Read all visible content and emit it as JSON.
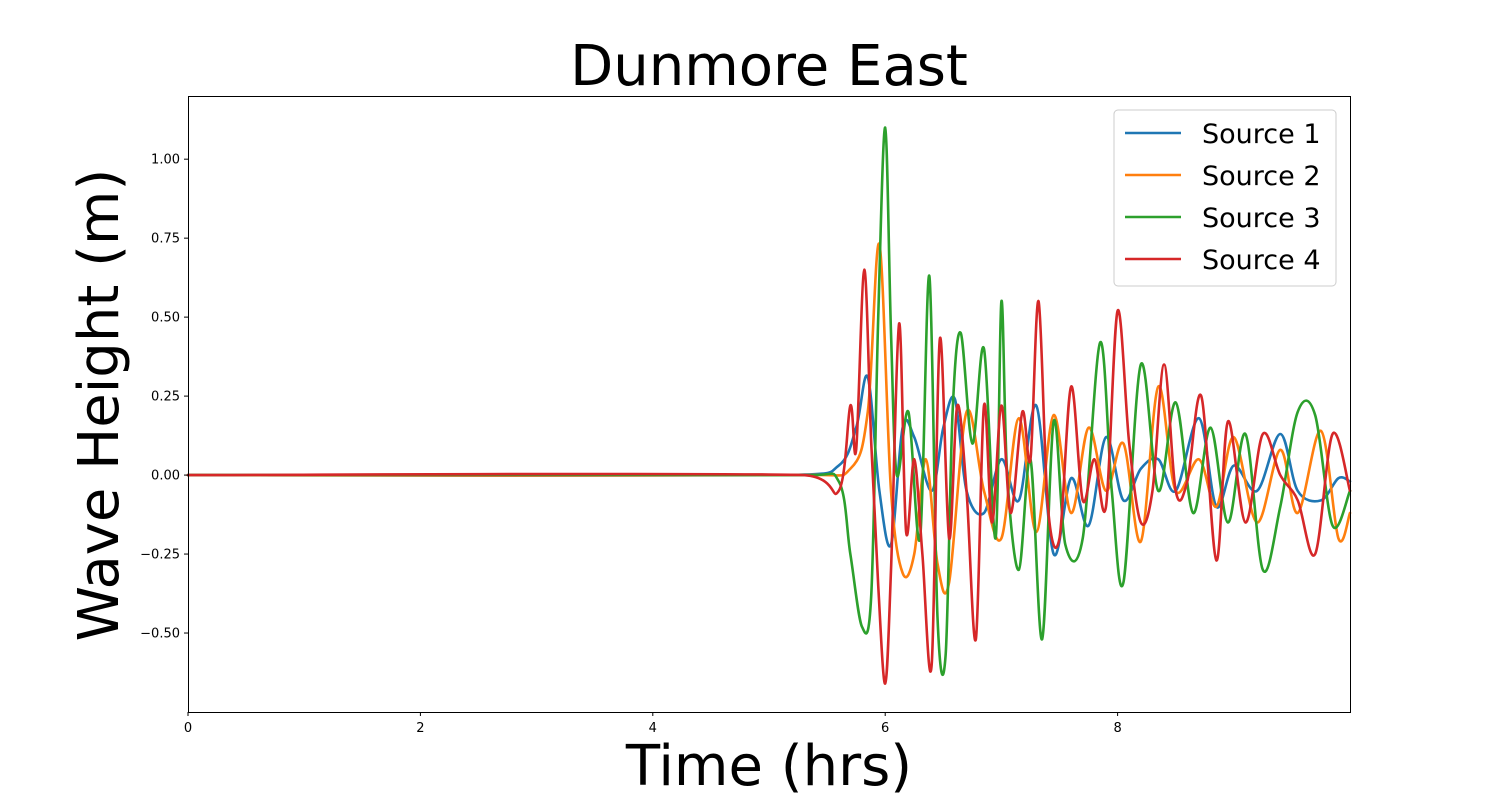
{
  "chart_data": {
    "type": "line",
    "title": "Dunmore East",
    "xlabel": "Time (hrs)",
    "ylabel": "Wave Height (m)",
    "xlim": [
      0,
      10
    ],
    "ylim": [
      -0.75,
      1.2
    ],
    "x_ticks": [
      0,
      2,
      4,
      6,
      8
    ],
    "x_tick_labels": [
      "0",
      "2",
      "4",
      "6",
      "8"
    ],
    "y_ticks": [
      -0.5,
      -0.25,
      0,
      0.25,
      0.5,
      0.75,
      1.0
    ],
    "y_tick_labels": [
      "−0.50",
      "−0.25",
      "0.00",
      "0.25",
      "0.50",
      "0.75",
      "1.00"
    ],
    "grid": false,
    "legend_position": "top-right",
    "series": [
      {
        "name": "Source 1",
        "color": "#1f77b4",
        "x": [
          0,
          5.2,
          5.6,
          5.75,
          5.85,
          5.95,
          6.05,
          6.15,
          6.25,
          6.4,
          6.5,
          6.6,
          6.7,
          6.85,
          7.0,
          7.15,
          7.3,
          7.45,
          7.6,
          7.75,
          7.9,
          8.05,
          8.2,
          8.35,
          8.5,
          8.7,
          8.85,
          9.0,
          9.2,
          9.4,
          9.55,
          9.75,
          9.9,
          10.0
        ],
        "y": [
          0,
          0,
          0.03,
          0.15,
          0.31,
          -0.05,
          -0.22,
          0.15,
          0.12,
          -0.05,
          0.15,
          0.24,
          -0.05,
          -0.12,
          0.05,
          -0.08,
          0.22,
          -0.25,
          -0.01,
          -0.16,
          0.12,
          -0.08,
          0.02,
          0.05,
          -0.05,
          0.18,
          -0.1,
          0.03,
          -0.05,
          0.13,
          -0.05,
          -0.08,
          -0.01,
          -0.02
        ]
      },
      {
        "name": "Source 2",
        "color": "#ff7f0e",
        "x": [
          0,
          5.3,
          5.7,
          5.85,
          5.95,
          6.05,
          6.15,
          6.25,
          6.35,
          6.45,
          6.55,
          6.7,
          6.85,
          7.0,
          7.15,
          7.3,
          7.45,
          7.6,
          7.75,
          7.9,
          8.05,
          8.2,
          8.35,
          8.5,
          8.7,
          8.85,
          9.0,
          9.2,
          9.4,
          9.55,
          9.75,
          9.9,
          10.0
        ],
        "y": [
          0,
          0,
          0.02,
          0.2,
          0.73,
          -0.05,
          -0.31,
          -0.25,
          0.05,
          -0.28,
          -0.34,
          0.2,
          -0.05,
          -0.2,
          0.18,
          -0.18,
          0.19,
          -0.12,
          0.15,
          -0.05,
          0.1,
          -0.21,
          0.28,
          -0.05,
          0.05,
          -0.1,
          0.12,
          -0.15,
          0.08,
          -0.12,
          0.14,
          -0.2,
          -0.12
        ]
      },
      {
        "name": "Source 3",
        "color": "#2ca02c",
        "x": [
          0,
          5.3,
          5.6,
          5.7,
          5.8,
          5.88,
          5.94,
          6.0,
          6.05,
          6.1,
          6.2,
          6.3,
          6.38,
          6.45,
          6.52,
          6.58,
          6.65,
          6.75,
          6.85,
          6.95,
          7.0,
          7.05,
          7.15,
          7.25,
          7.35,
          7.45,
          7.55,
          7.7,
          7.85,
          7.95,
          8.05,
          8.2,
          8.35,
          8.5,
          8.65,
          8.8,
          8.95,
          9.1,
          9.25,
          9.4,
          9.55,
          9.7,
          9.85,
          10.0
        ],
        "y": [
          0,
          0,
          -0.02,
          -0.25,
          -0.48,
          -0.38,
          0.5,
          1.1,
          0.45,
          0.0,
          0.2,
          -0.2,
          0.63,
          -0.45,
          -0.57,
          0.2,
          0.45,
          0.1,
          0.4,
          -0.2,
          0.55,
          0.0,
          -0.3,
          0.05,
          -0.52,
          0.17,
          -0.22,
          -0.2,
          0.42,
          -0.05,
          -0.34,
          0.35,
          -0.05,
          0.23,
          -0.12,
          0.15,
          -0.15,
          0.13,
          -0.3,
          -0.1,
          0.2,
          0.19,
          -0.16,
          -0.05
        ]
      },
      {
        "name": "Source 4",
        "color": "#d62728",
        "x": [
          0,
          5.3,
          5.6,
          5.7,
          5.75,
          5.82,
          5.88,
          5.94,
          6.0,
          6.05,
          6.12,
          6.18,
          6.25,
          6.32,
          6.4,
          6.47,
          6.55,
          6.62,
          6.7,
          6.78,
          6.85,
          6.92,
          7.0,
          7.08,
          7.18,
          7.25,
          7.32,
          7.4,
          7.5,
          7.6,
          7.7,
          7.8,
          7.9,
          8.0,
          8.1,
          8.2,
          8.3,
          8.4,
          8.5,
          8.6,
          8.72,
          8.85,
          8.95,
          9.1,
          9.25,
          9.4,
          9.55,
          9.7,
          9.85,
          10.0
        ],
        "y": [
          0,
          0,
          -0.05,
          0.22,
          0.08,
          0.65,
          0.1,
          -0.35,
          -0.66,
          -0.3,
          0.48,
          -0.18,
          0.05,
          -0.25,
          -0.6,
          0.43,
          -0.2,
          0.22,
          -0.05,
          -0.52,
          0.22,
          -0.15,
          0.22,
          -0.12,
          0.2,
          0.05,
          0.55,
          -0.1,
          -0.2,
          0.28,
          -0.08,
          0.05,
          -0.1,
          0.52,
          0.1,
          -0.15,
          -0.05,
          0.35,
          -0.05,
          -0.02,
          0.25,
          -0.27,
          0.17,
          -0.15,
          0.13,
          0.0,
          -0.08,
          -0.25,
          0.13,
          -0.05
        ]
      }
    ]
  }
}
